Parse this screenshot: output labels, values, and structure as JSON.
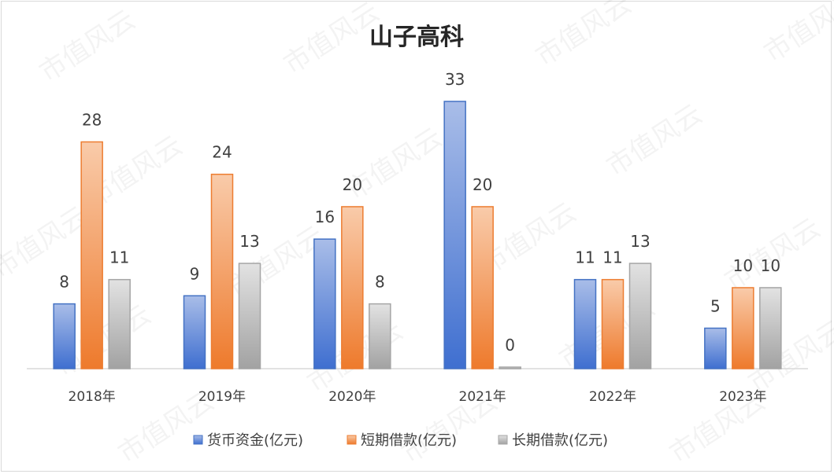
{
  "chart_data": {
    "type": "bar",
    "title": "山子高科",
    "categories": [
      "2018年",
      "2019年",
      "2020年",
      "2021年",
      "2022年",
      "2023年"
    ],
    "series": [
      {
        "name": "货币资金(亿元)",
        "values": [
          8,
          9,
          16,
          33,
          11,
          5
        ],
        "color": "#4472c4"
      },
      {
        "name": "短期借款(亿元)",
        "values": [
          28,
          24,
          20,
          20,
          11,
          10
        ],
        "color": "#ed7d31"
      },
      {
        "name": "长期借款(亿元)",
        "values": [
          11,
          13,
          8,
          0,
          13,
          10
        ],
        "color": "#a5a5a5"
      }
    ],
    "data_labels": true,
    "ylim": [
      0,
      35
    ],
    "grid": false,
    "legend": "bottom"
  },
  "watermark": "市值风云"
}
